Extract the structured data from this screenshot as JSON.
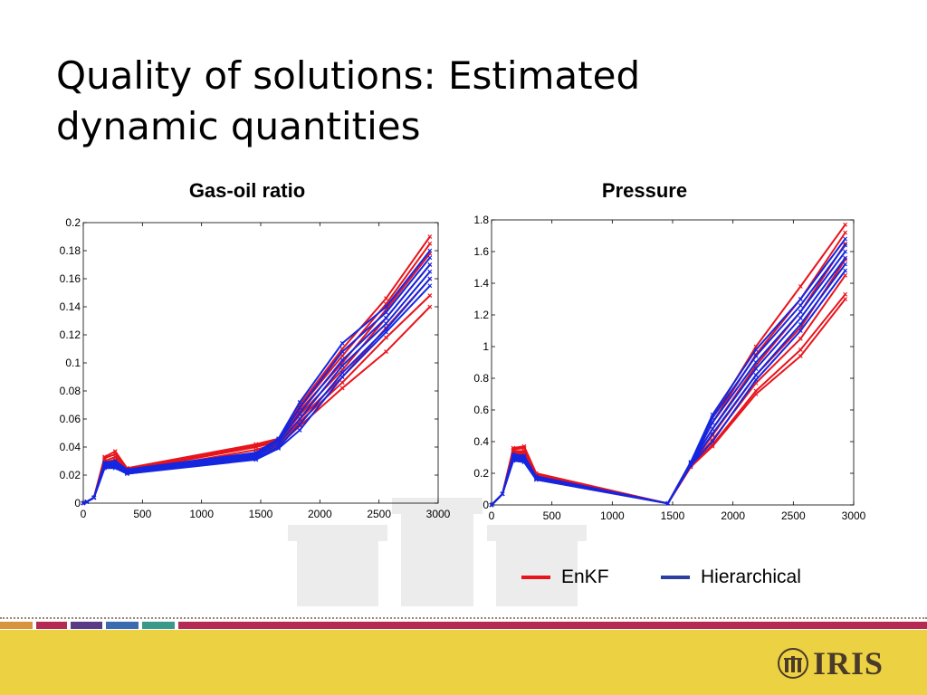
{
  "slide": {
    "title_line1": "Quality of solutions: Estimated",
    "title_line2": "dynamic quantities"
  },
  "legend": [
    {
      "name": "EnKF",
      "color": "#e8141c"
    },
    {
      "name": "Hierarchical",
      "color": "#2c3ea0"
    }
  ],
  "logo": {
    "text": "IRIS",
    "icon": "iris-emblem-icon"
  },
  "colors": {
    "enkf": "#e8141c",
    "hierarchical": "#1426e0",
    "footer": "#ecd142",
    "bar_segments": [
      "#d8943a",
      "#b42a52",
      "#5a3a86",
      "#3a6ab0",
      "#3a9a8a",
      "#b42a52"
    ]
  },
  "chart_data": [
    {
      "type": "line",
      "title": "Gas-oil ratio",
      "xlabel": "",
      "ylabel": "",
      "xlim": [
        0,
        3000
      ],
      "ylim": [
        0,
        0.2
      ],
      "xticks": [
        0,
        500,
        1000,
        1500,
        2000,
        2500,
        3000
      ],
      "yticks": [
        0,
        0.02,
        0.04,
        0.06,
        0.08,
        0.1,
        0.12,
        0.14,
        0.16,
        0.18,
        0.2
      ],
      "grid": false,
      "x": [
        0,
        30,
        90,
        180,
        270,
        370,
        1460,
        1650,
        1830,
        2190,
        2560,
        2930
      ],
      "series": [
        {
          "group": "EnKF",
          "values": [
            0,
            0.001,
            0.004,
            0.033,
            0.037,
            0.025,
            0.042,
            0.046,
            0.07,
            0.11,
            0.146,
            0.19
          ]
        },
        {
          "group": "EnKF",
          "values": [
            0,
            0.001,
            0.004,
            0.032,
            0.035,
            0.024,
            0.041,
            0.045,
            0.068,
            0.105,
            0.142,
            0.185
          ]
        },
        {
          "group": "EnKF",
          "values": [
            0,
            0.001,
            0.004,
            0.03,
            0.033,
            0.023,
            0.04,
            0.044,
            0.066,
            0.1,
            0.138,
            0.178
          ]
        },
        {
          "group": "EnKF",
          "values": [
            0,
            0.001,
            0.004,
            0.029,
            0.031,
            0.022,
            0.038,
            0.043,
            0.063,
            0.095,
            0.132,
            0.17
          ]
        },
        {
          "group": "EnKF",
          "values": [
            0,
            0.001,
            0.004,
            0.028,
            0.03,
            0.022,
            0.036,
            0.042,
            0.06,
            0.09,
            0.125,
            0.16
          ]
        },
        {
          "group": "EnKF",
          "values": [
            0,
            0.001,
            0.004,
            0.026,
            0.028,
            0.021,
            0.035,
            0.04,
            0.058,
            0.086,
            0.118,
            0.148
          ]
        },
        {
          "group": "EnKF",
          "values": [
            0,
            0.001,
            0.004,
            0.027,
            0.029,
            0.021,
            0.034,
            0.041,
            0.055,
            0.082,
            0.108,
            0.14
          ]
        },
        {
          "group": "Hierarchical",
          "values": [
            0,
            0.001,
            0.004,
            0.029,
            0.03,
            0.024,
            0.036,
            0.046,
            0.072,
            0.114,
            0.14,
            0.18
          ]
        },
        {
          "group": "Hierarchical",
          "values": [
            0,
            0.001,
            0.004,
            0.028,
            0.029,
            0.023,
            0.035,
            0.045,
            0.068,
            0.108,
            0.136,
            0.175
          ]
        },
        {
          "group": "Hierarchical",
          "values": [
            0,
            0.001,
            0.004,
            0.027,
            0.028,
            0.022,
            0.034,
            0.044,
            0.064,
            0.102,
            0.132,
            0.17
          ]
        },
        {
          "group": "Hierarchical",
          "values": [
            0,
            0.001,
            0.004,
            0.026,
            0.027,
            0.022,
            0.033,
            0.042,
            0.06,
            0.098,
            0.128,
            0.165
          ]
        },
        {
          "group": "Hierarchical",
          "values": [
            0,
            0.001,
            0.004,
            0.025,
            0.026,
            0.021,
            0.032,
            0.04,
            0.056,
            0.093,
            0.124,
            0.16
          ]
        },
        {
          "group": "Hierarchical",
          "values": [
            0,
            0.001,
            0.004,
            0.025,
            0.025,
            0.021,
            0.031,
            0.039,
            0.052,
            0.09,
            0.122,
            0.155
          ]
        }
      ]
    },
    {
      "type": "line",
      "title": "Pressure",
      "xlabel": "",
      "ylabel": "",
      "xlim": [
        0,
        3000
      ],
      "ylim": [
        0,
        1.8
      ],
      "xticks": [
        0,
        500,
        1000,
        1500,
        2000,
        2500,
        3000
      ],
      "yticks": [
        0,
        0.2,
        0.4,
        0.6,
        0.8,
        1,
        1.2,
        1.4,
        1.6,
        1.8
      ],
      "grid": false,
      "x": [
        0,
        90,
        180,
        270,
        370,
        1460,
        1650,
        1830,
        2190,
        2560,
        2930
      ],
      "series": [
        {
          "group": "EnKF",
          "values": [
            0,
            0.07,
            0.36,
            0.37,
            0.2,
            0.01,
            0.27,
            0.55,
            1.0,
            1.38,
            1.77
          ]
        },
        {
          "group": "EnKF",
          "values": [
            0,
            0.07,
            0.35,
            0.36,
            0.19,
            0.01,
            0.26,
            0.52,
            0.95,
            1.3,
            1.72
          ]
        },
        {
          "group": "EnKF",
          "values": [
            0,
            0.07,
            0.34,
            0.34,
            0.19,
            0.01,
            0.26,
            0.48,
            0.88,
            1.22,
            1.65
          ]
        },
        {
          "group": "EnKF",
          "values": [
            0,
            0.07,
            0.33,
            0.33,
            0.18,
            0.01,
            0.25,
            0.44,
            0.82,
            1.12,
            1.55
          ]
        },
        {
          "group": "EnKF",
          "values": [
            0,
            0.07,
            0.32,
            0.32,
            0.18,
            0.01,
            0.25,
            0.41,
            0.77,
            1.05,
            1.45
          ]
        },
        {
          "group": "EnKF",
          "values": [
            0,
            0.07,
            0.31,
            0.3,
            0.17,
            0.01,
            0.24,
            0.38,
            0.72,
            0.98,
            1.33
          ]
        },
        {
          "group": "EnKF",
          "values": [
            0,
            0.07,
            0.3,
            0.29,
            0.16,
            0.01,
            0.24,
            0.37,
            0.7,
            0.94,
            1.3
          ]
        },
        {
          "group": "Hierarchical",
          "values": [
            0,
            0.07,
            0.32,
            0.31,
            0.18,
            0.01,
            0.27,
            0.57,
            0.98,
            1.3,
            1.68
          ]
        },
        {
          "group": "Hierarchical",
          "values": [
            0,
            0.07,
            0.31,
            0.3,
            0.18,
            0.01,
            0.27,
            0.55,
            0.94,
            1.26,
            1.64
          ]
        },
        {
          "group": "Hierarchical",
          "values": [
            0,
            0.07,
            0.3,
            0.29,
            0.17,
            0.01,
            0.26,
            0.52,
            0.9,
            1.22,
            1.6
          ]
        },
        {
          "group": "Hierarchical",
          "values": [
            0,
            0.07,
            0.29,
            0.28,
            0.17,
            0.01,
            0.26,
            0.48,
            0.86,
            1.18,
            1.56
          ]
        },
        {
          "group": "Hierarchical",
          "values": [
            0,
            0.07,
            0.28,
            0.28,
            0.17,
            0.01,
            0.25,
            0.45,
            0.82,
            1.14,
            1.52
          ]
        },
        {
          "group": "Hierarchical",
          "values": [
            0,
            0.07,
            0.28,
            0.27,
            0.16,
            0.01,
            0.25,
            0.4,
            0.79,
            1.1,
            1.48
          ]
        }
      ]
    }
  ]
}
